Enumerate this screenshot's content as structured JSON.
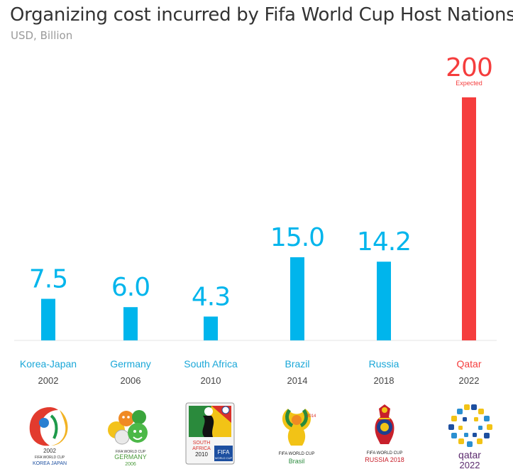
{
  "title": "Organizing cost incurred by Fifa World Cup Host Nations",
  "subtitle": "USD, Billion",
  "chart_data": {
    "type": "bar",
    "title": "Organizing cost incurred by Fifa World Cup Host Nations",
    "subtitle": "USD, Billion",
    "ylabel": "",
    "xlabel": "",
    "ylim": [
      0,
      200
    ],
    "categories": [
      "Korea-Japan",
      "Germany",
      "South Africa",
      "Brazil",
      "Russia",
      "Qatar"
    ],
    "years": [
      "2002",
      "2006",
      "2010",
      "2014",
      "2018",
      "2022"
    ],
    "values": [
      7.5,
      6.0,
      4.3,
      15.0,
      14.2,
      200
    ],
    "value_labels": [
      "7.5",
      "6.0",
      "4.3",
      "15.0",
      "14.2",
      "200"
    ],
    "annotations": [
      {
        "category": "Qatar",
        "text": "Expected"
      }
    ],
    "colors": {
      "bar": "#00b5ec",
      "highlight": "#f53d3d",
      "category": "#1aa7d8",
      "year": "#444444",
      "baseline": "#e6e6e6"
    },
    "highlight_category": "Qatar"
  },
  "logos": [
    {
      "name": "korea-japan-2002-logo",
      "text": "2002 FIFA WORLD CUP KOREA JAPAN"
    },
    {
      "name": "germany-2006-logo",
      "text": "FIFA WORLD CUP GERMANY 2006"
    },
    {
      "name": "south-africa-2010-logo",
      "text": "SOUTH AFRICA 2010 FIFA WORLD CUP"
    },
    {
      "name": "brazil-2014-logo",
      "text": "FIFA WORLD CUP Brasil 2014"
    },
    {
      "name": "russia-2018-logo",
      "text": "FIFA WORLD CUP RUSSIA 2018"
    },
    {
      "name": "qatar-2022-logo",
      "text": "qatar 2022"
    }
  ]
}
